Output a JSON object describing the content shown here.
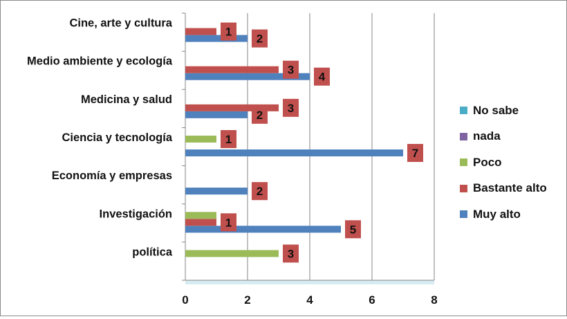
{
  "chart_data": {
    "type": "bar",
    "orientation": "horizontal",
    "categories": [
      "Cine, arte y cultura",
      "Medio ambiente y ecología",
      "Medicina y salud",
      "Ciencia y tecnología",
      "Economía y empresas",
      "Investigación",
      "política"
    ],
    "series": [
      {
        "name": "Muy alto",
        "color": "#4F81BD",
        "values": [
          2,
          4,
          2,
          7,
          2,
          5,
          null
        ]
      },
      {
        "name": "Bastante alto",
        "color": "#C0504D",
        "values": [
          1,
          3,
          3,
          null,
          null,
          1,
          null
        ]
      },
      {
        "name": "Poco",
        "color": "#9BBB59",
        "values": [
          null,
          null,
          null,
          1,
          null,
          1,
          3
        ]
      },
      {
        "name": "nada",
        "color": "#8064A2",
        "values": [
          null,
          null,
          null,
          null,
          null,
          null,
          null
        ]
      },
      {
        "name": "No sabe",
        "color": "#4BACC6",
        "values": [
          null,
          null,
          null,
          null,
          null,
          null,
          null
        ]
      }
    ],
    "data_labels": [
      {
        "category": "Cine, arte y cultura",
        "series": "Bastante alto",
        "text": "1"
      },
      {
        "category": "Cine, arte y cultura",
        "series": "Muy alto",
        "text": "2"
      },
      {
        "category": "Medio ambiente y ecología",
        "series": "Bastante alto",
        "text": "3"
      },
      {
        "category": "Medio ambiente y ecología",
        "series": "Muy alto",
        "text": "4"
      },
      {
        "category": "Medicina y salud",
        "series": "Bastante alto",
        "text": "3"
      },
      {
        "category": "Medicina y salud",
        "series": "Muy alto",
        "text": "2"
      },
      {
        "category": "Ciencia y tecnología",
        "series": "Poco",
        "text": "1"
      },
      {
        "category": "Ciencia y tecnología",
        "series": "Muy alto",
        "text": "7"
      },
      {
        "category": "Economía y empresas",
        "series": "Muy alto",
        "text": "2"
      },
      {
        "category": "Investigación",
        "series": "Bastante alto",
        "text": "1"
      },
      {
        "category": "Investigación",
        "series": "Muy alto",
        "text": "5"
      },
      {
        "category": "política",
        "series": "Poco",
        "text": "3"
      }
    ],
    "xlim": [
      0,
      8
    ],
    "xticks": [
      0,
      2,
      4,
      6,
      8
    ],
    "legend_order": [
      "No sabe",
      "nada",
      "Poco",
      "Bastante alto",
      "Muy alto"
    ],
    "legend_position": "right",
    "grid": "vertical",
    "data_label_style": {
      "background": "#C0504D",
      "text_color": "#111111"
    },
    "title": "",
    "xlabel": "",
    "ylabel": ""
  }
}
